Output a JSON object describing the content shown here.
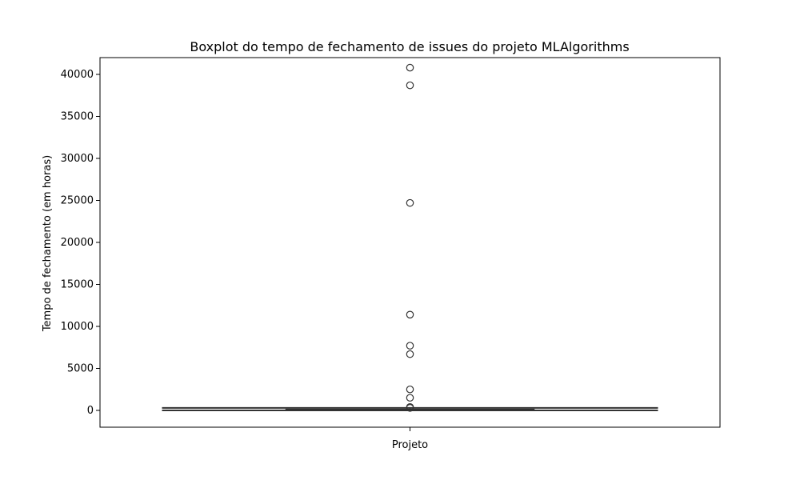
{
  "chart_data": {
    "type": "box",
    "title": "Boxplot do tempo de fechamento de issues do projeto MLAlgorithms",
    "xlabel": "",
    "ylabel": "Tempo de fechamento (em horas)",
    "categories": [
      "Projeto"
    ],
    "ylim": [
      -2000,
      42000
    ],
    "yticks": [
      0,
      5000,
      10000,
      15000,
      20000,
      25000,
      30000,
      35000,
      40000
    ],
    "ytick_labels": [
      "0",
      "5000",
      "10000",
      "15000",
      "20000",
      "25000",
      "30000",
      "35000",
      "40000"
    ],
    "box": {
      "category": "Projeto",
      "whisker_low": 0,
      "q1": 10,
      "median": 40,
      "q3": 130,
      "whisker_high": 300,
      "outliers": [
        40800,
        38700,
        24700,
        11400,
        7700,
        6700,
        2500,
        1500,
        400,
        300
      ]
    },
    "grid": false,
    "colors": {
      "stroke": "#333333",
      "box_fill": "#1f77b4"
    }
  }
}
